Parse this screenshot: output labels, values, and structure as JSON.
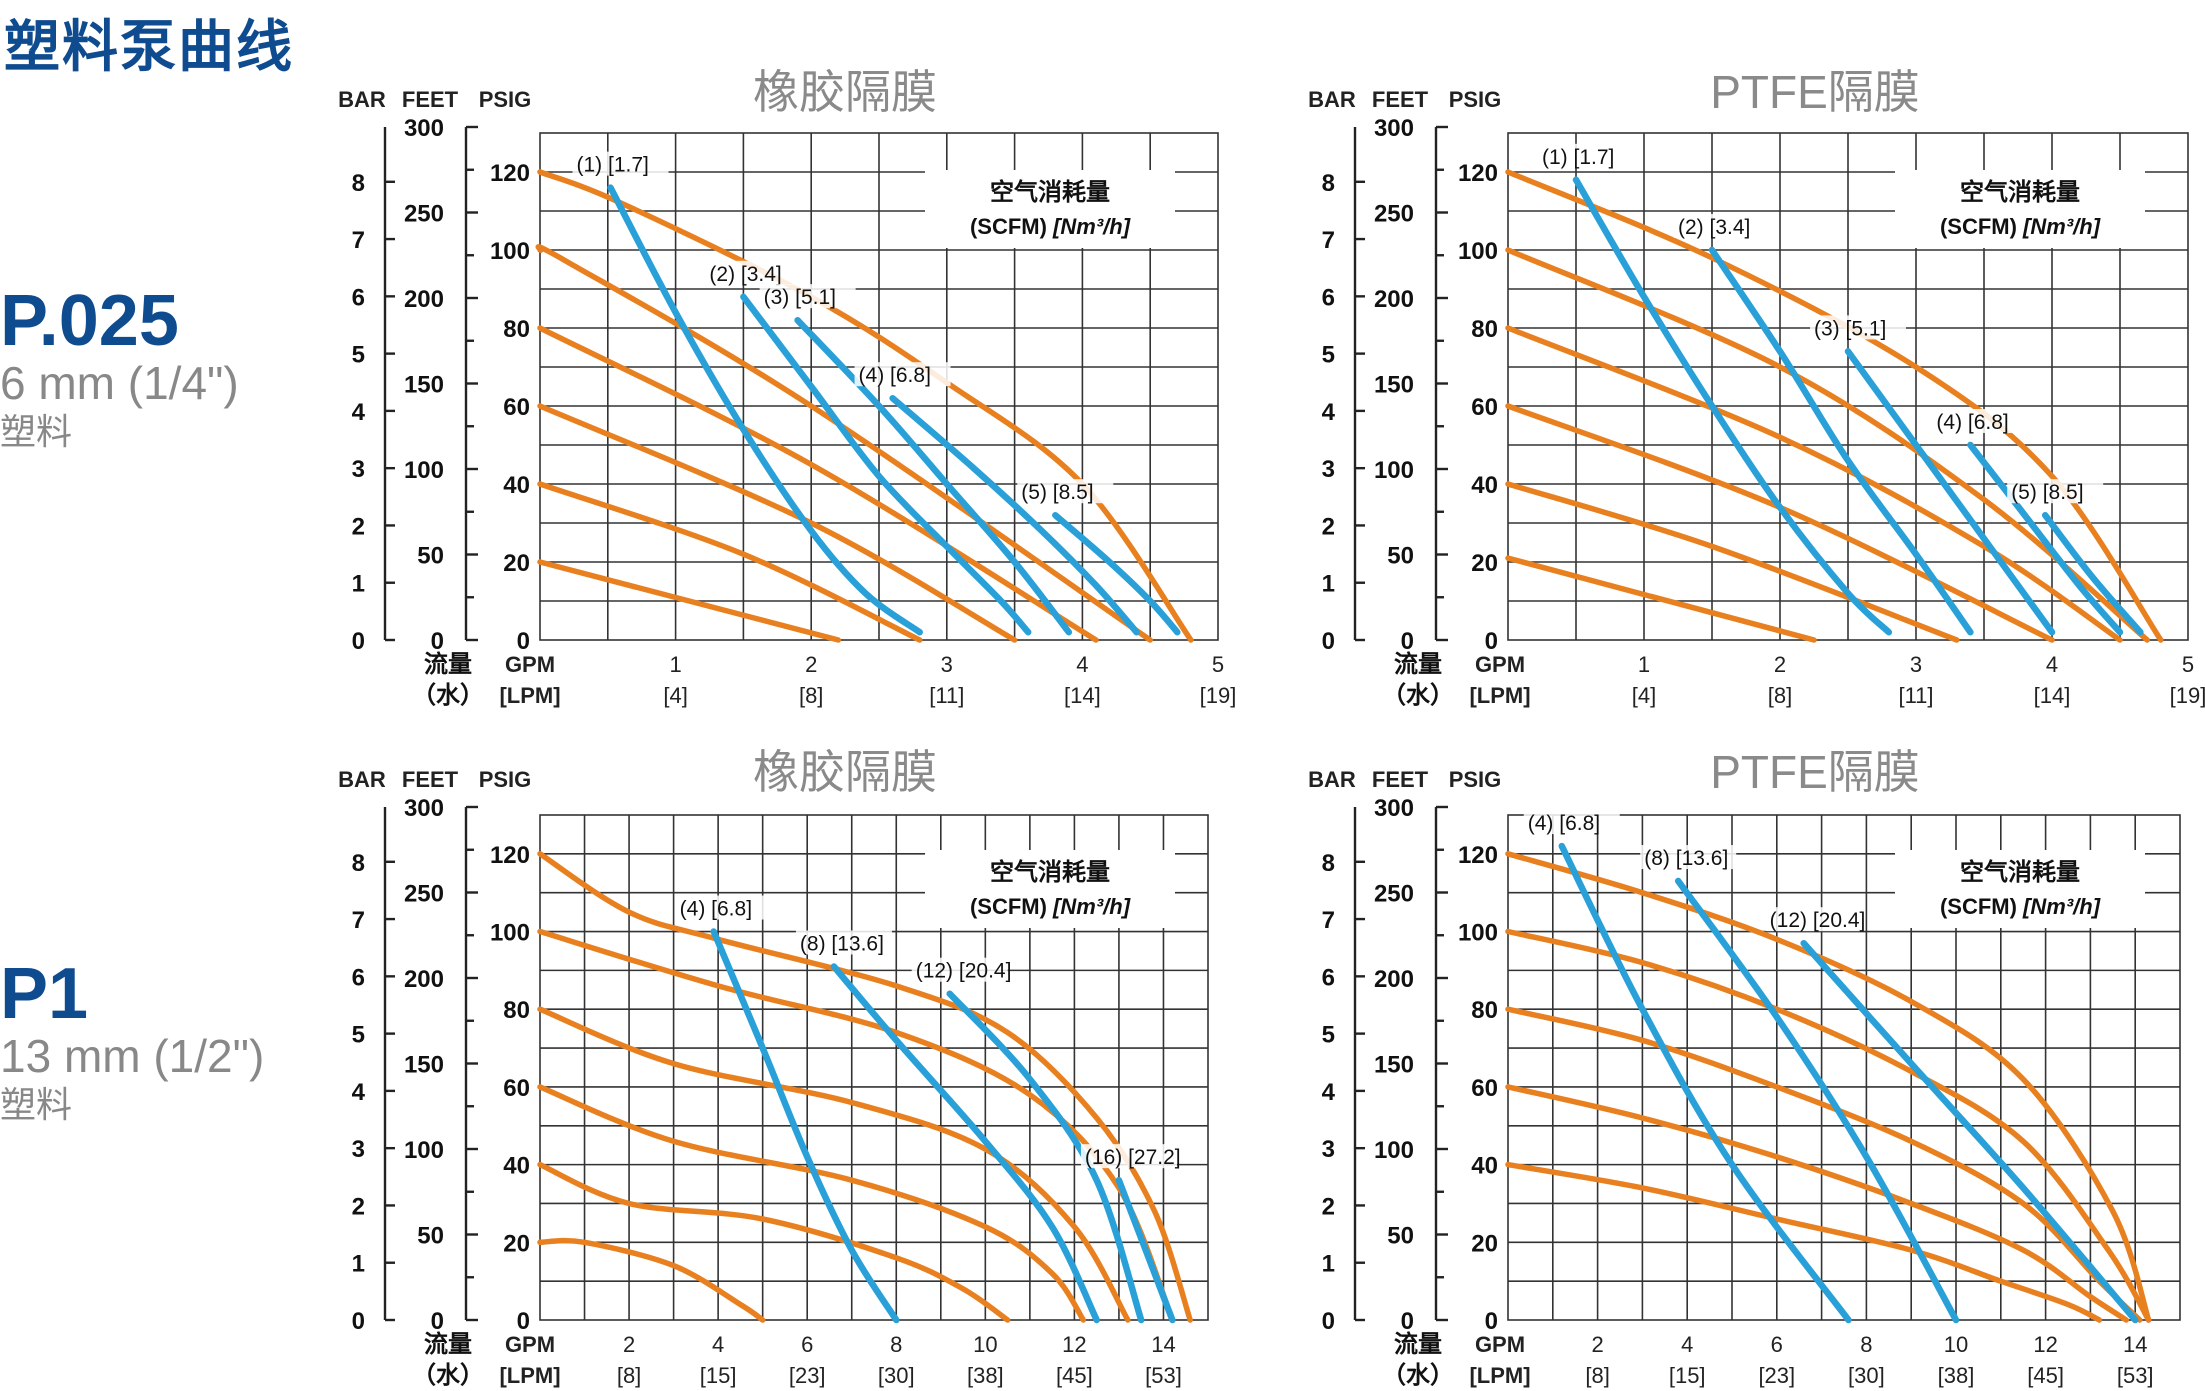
{
  "page_title": "塑料泵曲线",
  "models": [
    {
      "name": "P.025",
      "size": "6 mm (1/4\")",
      "material": "塑料"
    },
    {
      "name": "P1",
      "size": "13 mm (1/2\")",
      "material": "塑料"
    }
  ],
  "colors": {
    "head_curve": "#e8801f",
    "air_curve": "#2aa0d8",
    "grid": "#333333",
    "accent": "#0f4b8f"
  },
  "chart_data": [
    {
      "type": "line",
      "title": "橡胶隔膜",
      "axis_headers": {
        "bar": "BAR",
        "feet": "FEET",
        "psig": "PSIG",
        "flow": "流量",
        "water": "（水）",
        "gpm": "GPM",
        "lpm": "[LPM]"
      },
      "legend": {
        "line1": "空气消耗量",
        "line2a": "(SCFM) ",
        "line2b": "[Nm³/h]"
      },
      "xlim": [
        0,
        5
      ],
      "ylim": [
        0,
        130
      ],
      "x_ticks": [
        1,
        2,
        3,
        4,
        5
      ],
      "x_tick_labels": [
        "1",
        "2",
        "3",
        "4",
        "5"
      ],
      "lpm_tick_labels": [
        "[4]",
        "[8]",
        "[11]",
        "[14]",
        "[19]"
      ],
      "psig_ticks": [
        0,
        20,
        40,
        60,
        80,
        100,
        120
      ],
      "psig_tick_labels": [
        "0",
        "20",
        "40",
        "60",
        "80",
        "100",
        "120"
      ],
      "feet_ticks": [
        0,
        50,
        100,
        150,
        200,
        250,
        300
      ],
      "feet_tick_labels": [
        "0",
        "50",
        "100",
        "150",
        "200",
        "250",
        "300"
      ],
      "bar_ticks": [
        0,
        1,
        2,
        3,
        4,
        5,
        6,
        7,
        8
      ],
      "bar_tick_labels": [
        "0",
        "1",
        "2",
        "3",
        "4",
        "5",
        "6",
        "7",
        "8"
      ],
      "head_curves": [
        {
          "name": "20 psig",
          "x": [
            0,
            2.2
          ],
          "y": [
            20,
            0
          ]
        },
        {
          "name": "40 psig",
          "x": [
            0,
            1.5,
            2.8
          ],
          "y": [
            40,
            22,
            0
          ]
        },
        {
          "name": "60 psig",
          "x": [
            0,
            2,
            3.5
          ],
          "y": [
            60,
            30,
            0
          ]
        },
        {
          "name": "80 psig",
          "x": [
            0,
            2,
            4.1
          ],
          "y": [
            80,
            45,
            0
          ]
        },
        {
          "name": "100 psig",
          "x": [
            0,
            0.2,
            2,
            4.5
          ],
          "y": [
            100,
            97,
            60,
            0
          ]
        },
        {
          "name": "120 psig",
          "x": [
            0,
            0.6,
            2,
            3,
            4,
            4.8
          ],
          "y": [
            120,
            112,
            88,
            66,
            40,
            0
          ]
        }
      ],
      "air_curves": [
        {
          "label": "(1) [1.7]",
          "x": [
            0.52,
            1,
            1.5,
            2,
            2.4,
            2.8
          ],
          "y": [
            116,
            84,
            54,
            28,
            12,
            2
          ]
        },
        {
          "label": "(2) [3.4]",
          "x": [
            1.5,
            2,
            2.5,
            3,
            3.4,
            3.6
          ],
          "y": [
            88,
            65,
            42,
            24,
            10,
            2
          ]
        },
        {
          "label": "(3) [5.1]",
          "x": [
            1.9,
            2.5,
            3,
            3.5,
            3.9
          ],
          "y": [
            82,
            60,
            40,
            20,
            2
          ]
        },
        {
          "label": "(4) [6.8]",
          "x": [
            2.6,
            3.2,
            3.7,
            4.1,
            4.4
          ],
          "y": [
            62,
            44,
            28,
            14,
            2
          ]
        },
        {
          "label": "(5) [8.5]",
          "x": [
            3.8,
            4.2,
            4.5,
            4.7
          ],
          "y": [
            32,
            20,
            10,
            2
          ]
        }
      ]
    },
    {
      "type": "line",
      "title": "PTFE隔膜",
      "axis_headers": {
        "bar": "BAR",
        "feet": "FEET",
        "psig": "PSIG",
        "flow": "流量",
        "water": "（水）",
        "gpm": "GPM",
        "lpm": "[LPM]"
      },
      "legend": {
        "line1": "空气消耗量",
        "line2a": "(SCFM) ",
        "line2b": "[Nm³/h]"
      },
      "xlim": [
        0,
        5
      ],
      "ylim": [
        0,
        130
      ],
      "x_ticks": [
        1,
        2,
        3,
        4,
        5
      ],
      "x_tick_labels": [
        "1",
        "2",
        "3",
        "4",
        "5"
      ],
      "lpm_tick_labels": [
        "[4]",
        "[8]",
        "[11]",
        "[14]",
        "[19]"
      ],
      "psig_ticks": [
        0,
        20,
        40,
        60,
        80,
        100,
        120
      ],
      "psig_tick_labels": [
        "0",
        "20",
        "40",
        "60",
        "80",
        "100",
        "120"
      ],
      "feet_ticks": [
        0,
        50,
        100,
        150,
        200,
        250,
        300
      ],
      "feet_tick_labels": [
        "0",
        "50",
        "100",
        "150",
        "200",
        "250",
        "300"
      ],
      "bar_ticks": [
        0,
        1,
        2,
        3,
        4,
        5,
        6,
        7,
        8
      ],
      "bar_tick_labels": [
        "0",
        "1",
        "2",
        "3",
        "4",
        "5",
        "6",
        "7",
        "8"
      ],
      "head_curves": [
        {
          "name": "20 psig",
          "x": [
            0,
            2.25
          ],
          "y": [
            21,
            0
          ]
        },
        {
          "name": "40 psig",
          "x": [
            0,
            1.5,
            3.3
          ],
          "y": [
            40,
            24,
            0
          ]
        },
        {
          "name": "60 psig",
          "x": [
            0,
            2,
            4
          ],
          "y": [
            60,
            34,
            0
          ]
        },
        {
          "name": "80 psig",
          "x": [
            0,
            2,
            3.5,
            4.5
          ],
          "y": [
            80,
            52,
            24,
            0
          ]
        },
        {
          "name": "100 psig",
          "x": [
            0,
            2,
            3.5,
            4.7
          ],
          "y": [
            100,
            70,
            36,
            0
          ]
        },
        {
          "name": "120 psig",
          "x": [
            0,
            1.5,
            3,
            4,
            4.8
          ],
          "y": [
            120,
            98,
            70,
            42,
            0
          ]
        }
      ],
      "air_curves": [
        {
          "label": "(1) [1.7]",
          "x": [
            0.5,
            1,
            1.5,
            2,
            2.5,
            2.8
          ],
          "y": [
            118,
            88,
            60,
            34,
            12,
            2
          ]
        },
        {
          "label": "(2) [3.4]",
          "x": [
            1.5,
            2,
            2.5,
            3,
            3.4
          ],
          "y": [
            100,
            74,
            46,
            22,
            2
          ]
        },
        {
          "label": "(3) [5.1]",
          "x": [
            2.5,
            3,
            3.5,
            4
          ],
          "y": [
            74,
            50,
            26,
            2
          ]
        },
        {
          "label": "(4) [6.8]",
          "x": [
            3.4,
            3.8,
            4.2,
            4.5
          ],
          "y": [
            50,
            32,
            14,
            2
          ]
        },
        {
          "label": "(5) [8.5]",
          "x": [
            3.95,
            4.3,
            4.65
          ],
          "y": [
            32,
            16,
            2
          ]
        }
      ]
    },
    {
      "type": "line",
      "title": "橡胶隔膜",
      "axis_headers": {
        "bar": "BAR",
        "feet": "FEET",
        "psig": "PSIG",
        "flow": "流量",
        "water": "（水）",
        "gpm": "GPM",
        "lpm": "[LPM]"
      },
      "legend": {
        "line1": "空气消耗量",
        "line2a": "(SCFM) ",
        "line2b": "[Nm³/h]"
      },
      "xlim": [
        0,
        15
      ],
      "ylim": [
        0,
        130
      ],
      "x_ticks": [
        2,
        4,
        6,
        8,
        10,
        12,
        14
      ],
      "x_tick_labels": [
        "2",
        "4",
        "6",
        "8",
        "10",
        "12",
        "14"
      ],
      "lpm_tick_labels": [
        "[8]",
        "[15]",
        "[23]",
        "[30]",
        "[38]",
        "[45]",
        "[53]"
      ],
      "psig_ticks": [
        0,
        20,
        40,
        60,
        80,
        100,
        120
      ],
      "psig_tick_labels": [
        "0",
        "20",
        "40",
        "60",
        "80",
        "100",
        "120"
      ],
      "feet_ticks": [
        0,
        50,
        100,
        150,
        200,
        250,
        300
      ],
      "feet_tick_labels": [
        "0",
        "50",
        "100",
        "150",
        "200",
        "250",
        "300"
      ],
      "bar_ticks": [
        0,
        1,
        2,
        3,
        4,
        5,
        6,
        7,
        8
      ],
      "bar_tick_labels": [
        "0",
        "1",
        "2",
        "3",
        "4",
        "5",
        "6",
        "7",
        "8"
      ],
      "head_curves": [
        {
          "name": "20 psig",
          "x": [
            0,
            1,
            3,
            4.5,
            5
          ],
          "y": [
            20,
            20,
            14,
            4,
            0
          ]
        },
        {
          "name": "40 psig",
          "x": [
            0,
            2,
            5,
            8,
            9.5,
            10.5
          ],
          "y": [
            40,
            30,
            26,
            16,
            8,
            0
          ]
        },
        {
          "name": "60 psig",
          "x": [
            0,
            3,
            7,
            10,
            11.5,
            12.2
          ],
          "y": [
            60,
            46,
            36,
            24,
            12,
            0
          ]
        },
        {
          "name": "80 psig",
          "x": [
            0,
            3,
            7,
            10,
            12,
            13.2
          ],
          "y": [
            80,
            66,
            56,
            44,
            24,
            0
          ]
        },
        {
          "name": "100 psig",
          "x": [
            0,
            4,
            8,
            11,
            13,
            14.2
          ],
          "y": [
            100,
            86,
            74,
            58,
            34,
            0
          ]
        },
        {
          "name": "120 psig",
          "x": [
            0,
            2,
            4,
            8,
            10.5,
            12.5,
            13.8,
            14.6
          ],
          "y": [
            120,
            105,
            98,
            86,
            74,
            52,
            28,
            0
          ]
        }
      ],
      "air_curves": [
        {
          "label": "(4) [6.8]",
          "x": [
            3.9,
            5,
            6,
            7,
            8
          ],
          "y": [
            100,
            70,
            42,
            18,
            0
          ]
        },
        {
          "label": "(8) [13.6]",
          "x": [
            6.6,
            8,
            10,
            11.5,
            12.5
          ],
          "y": [
            91,
            72,
            46,
            24,
            0
          ]
        },
        {
          "label": "(12) [20.4]",
          "x": [
            9.2,
            11,
            12.5,
            13.5
          ],
          "y": [
            84,
            62,
            36,
            0
          ]
        },
        {
          "label": "(16) [27.2]",
          "x": [
            13,
            13.6,
            14.2
          ],
          "y": [
            36,
            18,
            0
          ]
        }
      ]
    },
    {
      "type": "line",
      "title": "PTFE隔膜",
      "axis_headers": {
        "bar": "BAR",
        "feet": "FEET",
        "psig": "PSIG",
        "flow": "流量",
        "water": "（水）",
        "gpm": "GPM",
        "lpm": "[LPM]"
      },
      "legend": {
        "line1": "空气消耗量",
        "line2a": "(SCFM) ",
        "line2b": "[Nm³/h]"
      },
      "xlim": [
        0,
        15
      ],
      "ylim": [
        0,
        130
      ],
      "x_ticks": [
        2,
        4,
        6,
        8,
        10,
        12,
        14
      ],
      "x_tick_labels": [
        "2",
        "4",
        "6",
        "8",
        "10",
        "12",
        "14"
      ],
      "lpm_tick_labels": [
        "[8]",
        "[15]",
        "[23]",
        "[30]",
        "[38]",
        "[45]",
        "[53]"
      ],
      "psig_ticks": [
        0,
        20,
        40,
        60,
        80,
        100,
        120
      ],
      "psig_tick_labels": [
        "0",
        "20",
        "40",
        "60",
        "80",
        "100",
        "120"
      ],
      "feet_ticks": [
        0,
        50,
        100,
        150,
        200,
        250,
        300
      ],
      "feet_tick_labels": [
        "0",
        "50",
        "100",
        "150",
        "200",
        "250",
        "300"
      ],
      "bar_ticks": [
        0,
        1,
        2,
        3,
        4,
        5,
        6,
        7,
        8
      ],
      "bar_tick_labels": [
        "0",
        "1",
        "2",
        "3",
        "4",
        "5",
        "6",
        "7",
        "8"
      ],
      "head_curves": [
        {
          "name": "40 psig",
          "x": [
            0,
            3,
            6,
            9,
            11,
            12.5,
            13.2
          ],
          "y": [
            40,
            34,
            26,
            18,
            10,
            4,
            0
          ]
        },
        {
          "name": "60 psig",
          "x": [
            0,
            3,
            6,
            9,
            11.5,
            13,
            13.8
          ],
          "y": [
            60,
            52,
            42,
            30,
            18,
            6,
            0
          ]
        },
        {
          "name": "80 psig",
          "x": [
            0,
            3,
            6,
            9,
            11.5,
            13.2,
            14.1
          ],
          "y": [
            80,
            72,
            60,
            46,
            30,
            10,
            0
          ]
        },
        {
          "name": "100 psig",
          "x": [
            0,
            3,
            6,
            9,
            11.5,
            13.4,
            14.3
          ],
          "y": [
            100,
            92,
            80,
            64,
            46,
            18,
            0
          ]
        },
        {
          "name": "120 psig",
          "x": [
            0,
            3,
            6,
            9,
            11.5,
            13.5,
            14.3
          ],
          "y": [
            120,
            110,
            98,
            82,
            62,
            28,
            0
          ]
        }
      ],
      "air_curves": [
        {
          "label": "(4) [6.8]",
          "x": [
            1.2,
            3,
            5,
            7.6
          ],
          "y": [
            122,
            80,
            40,
            0
          ]
        },
        {
          "label": "(8) [13.6]",
          "x": [
            3.8,
            6,
            8,
            10
          ],
          "y": [
            113,
            78,
            42,
            0
          ]
        },
        {
          "label": "(12) [20.4]",
          "x": [
            6.6,
            9,
            11.5,
            14
          ],
          "y": [
            97,
            66,
            34,
            0
          ]
        }
      ]
    }
  ]
}
